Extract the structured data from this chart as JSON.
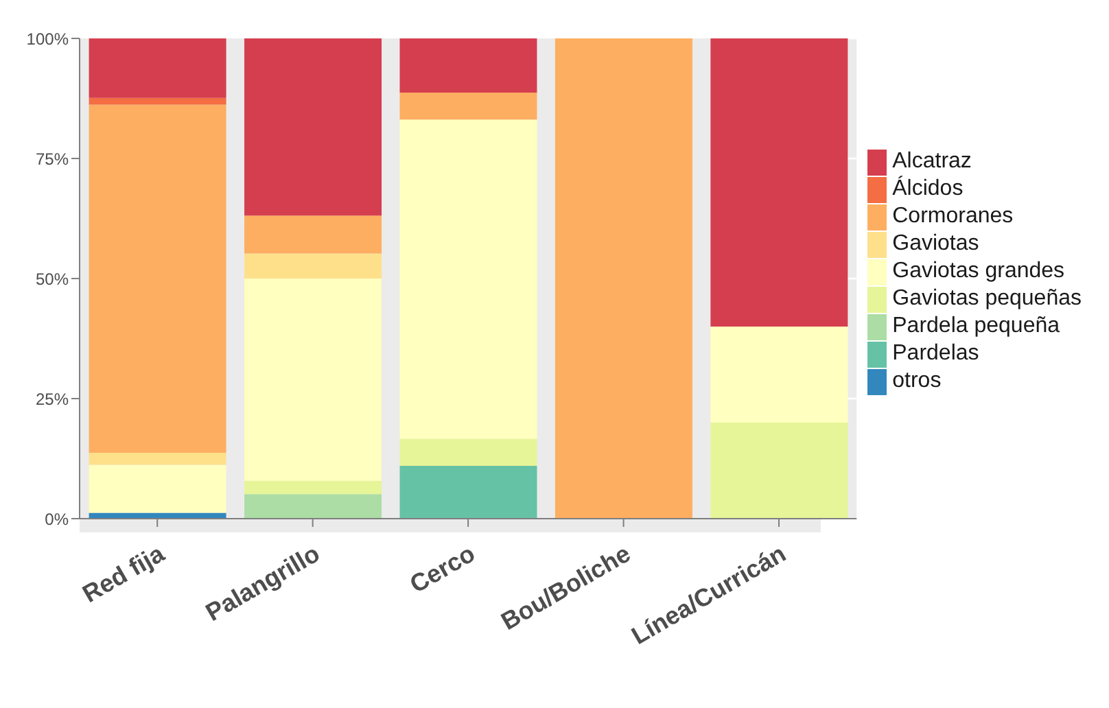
{
  "chart_data": {
    "type": "bar",
    "stacked": true,
    "categories": [
      "Red fija",
      "Palangrillo",
      "Cerco",
      "Bou/Boliche",
      "Línea/Curricán"
    ],
    "series": [
      {
        "name": "otros",
        "color": "#3288bd",
        "values": [
          1.2,
          0,
          0,
          0,
          0
        ]
      },
      {
        "name": "Pardelas",
        "color": "#66c2a5",
        "values": [
          0,
          0,
          11,
          0,
          0
        ]
      },
      {
        "name": "Pardela pequeña",
        "color": "#abdda4",
        "values": [
          0,
          5.1,
          0,
          0,
          0
        ]
      },
      {
        "name": "Gaviotas pequeñas",
        "color": "#e6f598",
        "values": [
          0,
          2.8,
          5.6,
          0,
          20
        ]
      },
      {
        "name": "Gaviotas grandes",
        "color": "#ffffbf",
        "values": [
          10,
          42.1,
          66.5,
          0,
          20
        ]
      },
      {
        "name": "Gaviotas",
        "color": "#fee08b",
        "values": [
          2.5,
          5.2,
          0,
          0,
          0
        ]
      },
      {
        "name": "Cormoranes",
        "color": "#fdae61",
        "values": [
          72.5,
          7.9,
          5.6,
          100,
          0
        ]
      },
      {
        "name": "Álcidos",
        "color": "#f46d43",
        "values": [
          1.4,
          0,
          0,
          0,
          0
        ]
      },
      {
        "name": "Alcatraz",
        "color": "#d53e4f",
        "values": [
          12.4,
          36.9,
          11.3,
          0,
          60
        ]
      }
    ],
    "ylim": [
      0,
      100
    ],
    "yticks": [
      {
        "value": 0,
        "label": "0%"
      },
      {
        "value": 25,
        "label": "25%"
      },
      {
        "value": 50,
        "label": "50%"
      },
      {
        "value": 75,
        "label": "75%"
      },
      {
        "value": 100,
        "label": "100%"
      }
    ],
    "grid": "y",
    "legend": "right"
  }
}
